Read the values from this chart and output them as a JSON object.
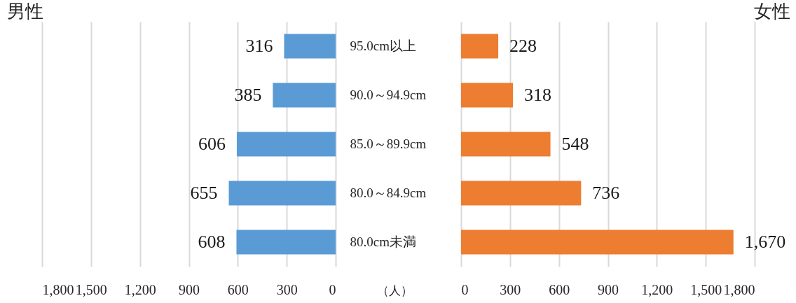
{
  "chart_data": [
    {
      "type": "bar",
      "orientation": "horizontal",
      "title": "男性",
      "categories": [
        "95.0cm以上",
        "90.0～94.9cm",
        "85.0～89.9cm",
        "80.0～84.9cm",
        "80.0cm未満"
      ],
      "values": [
        316,
        385,
        606,
        655,
        608
      ],
      "color": "#5b9bd5",
      "xlim": [
        1800,
        0
      ],
      "xticks": [
        {
          "value": 1800,
          "label": "1,800"
        },
        {
          "value": 1500,
          "label": "1,500"
        },
        {
          "value": 1200,
          "label": "1,200"
        },
        900,
        600,
        300,
        0
      ],
      "grid": "x",
      "data_labels": true,
      "annotations": [
        "（人）"
      ]
    },
    {
      "type": "bar",
      "orientation": "horizontal",
      "title": "女性",
      "categories": [
        "95.0cm以上",
        "90.0～94.9cm",
        "85.0～89.9cm",
        "80.0～84.9cm",
        "80.0cm未満"
      ],
      "values": [
        228,
        318,
        548,
        736,
        1670
      ],
      "color": "#ed7d31",
      "xlim": [
        0,
        1800
      ],
      "xticks": [
        0,
        300,
        600,
        900,
        {
          "value": 1200,
          "label": "1,200"
        },
        {
          "value": 1500,
          "label": "1,500"
        },
        {
          "value": 1800,
          "label": "1,800"
        }
      ],
      "grid": "x",
      "value_labels": [
        "228",
        "318",
        "548",
        "736",
        "1,670"
      ],
      "tick_labels": "x"
    }
  ]
}
